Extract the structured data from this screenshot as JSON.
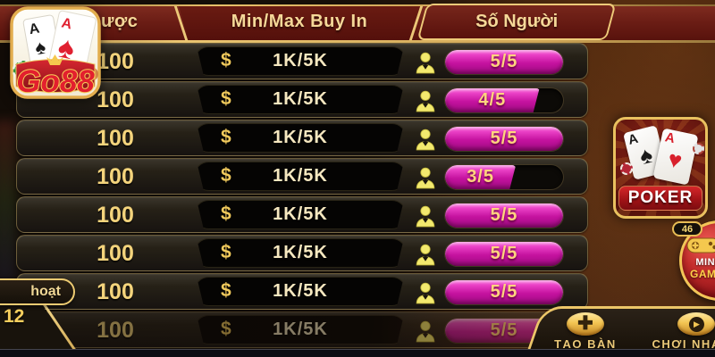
{
  "logo": {
    "brand": "Go88"
  },
  "header": {
    "columns": [
      "ược",
      "Min/Max Buy In",
      "Số Người"
    ]
  },
  "rows": [
    {
      "bet": "100",
      "currency_icon": "$",
      "buy_in": "1K/5K",
      "players": "5/5",
      "fill_pct": 100,
      "dimmed": false
    },
    {
      "bet": "100",
      "currency_icon": "$",
      "buy_in": "1K/5K",
      "players": "4/5",
      "fill_pct": 80,
      "dimmed": false
    },
    {
      "bet": "100",
      "currency_icon": "$",
      "buy_in": "1K/5K",
      "players": "5/5",
      "fill_pct": 100,
      "dimmed": false
    },
    {
      "bet": "100",
      "currency_icon": "$",
      "buy_in": "1K/5K",
      "players": "3/5",
      "fill_pct": 60,
      "dimmed": false
    },
    {
      "bet": "100",
      "currency_icon": "$",
      "buy_in": "1K/5K",
      "players": "5/5",
      "fill_pct": 100,
      "dimmed": false
    },
    {
      "bet": "100",
      "currency_icon": "$",
      "buy_in": "1K/5K",
      "players": "5/5",
      "fill_pct": 100,
      "dimmed": false
    },
    {
      "bet": "100",
      "currency_icon": "$",
      "buy_in": "1K/5K",
      "players": "5/5",
      "fill_pct": 100,
      "dimmed": false
    },
    {
      "bet": "100",
      "currency_icon": "$",
      "buy_in": "1K/5K",
      "players": "5/5",
      "fill_pct": 100,
      "dimmed": true
    }
  ],
  "side_panel": {
    "tab_label": "hoạt",
    "count": "12"
  },
  "poker_banner": {
    "title": "POKER",
    "card1_rank": "A",
    "card1_suit": "♠",
    "card2_rank": "A",
    "card2_suit": "♥"
  },
  "mini_game": {
    "badge_count": "46",
    "line1": "MINI",
    "line2": "GAME"
  },
  "footer": {
    "create_table_label": "TẠO BÀN",
    "quick_play_label": "CHƠI NHANH"
  },
  "colors": {
    "accent_gold": "#e9c15f",
    "badge_pink": "#c5129f",
    "header_maroon": "#6b1d15",
    "badge_text_gold": "#ffd47e"
  }
}
